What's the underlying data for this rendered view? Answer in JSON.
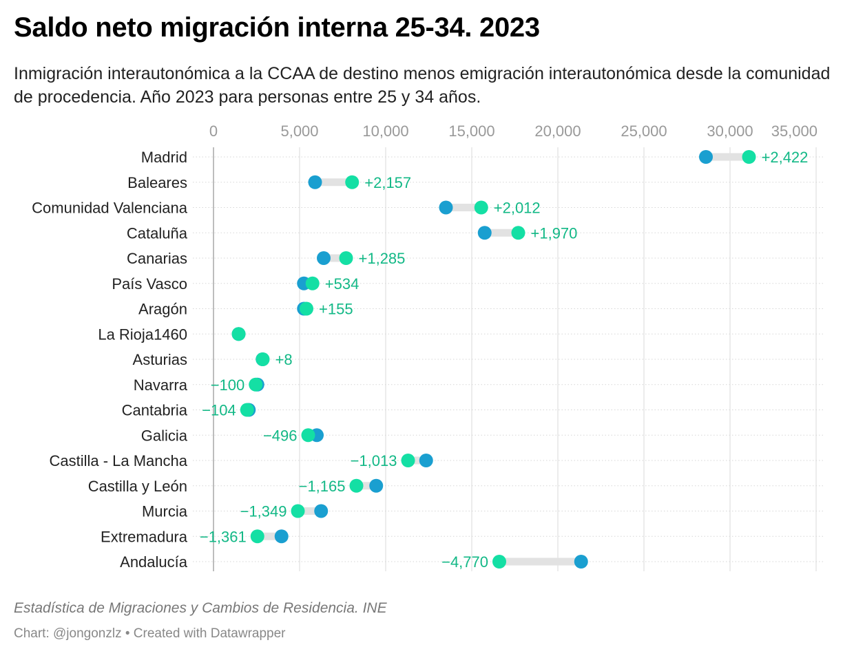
{
  "title": "Saldo neto migración interna 25-34. 2023",
  "subtitle": "Inmigración interautonómica a la CCAA de destino menos emigración interautonómica desde la comunidad de procedencia. Año 2023 para personas entre 25 y 34 años.",
  "source": "Estadística de Migraciones y Cambios de Residencia. INE",
  "credit": "Chart: @jongonzlz • Created with Datawrapper",
  "colors": {
    "emigracion": "#1a9fd0",
    "inmigracion": "#14dfa4",
    "positive_label": "#12b886",
    "negative_label": "#12b886",
    "connector": "#e2e2e2"
  },
  "chart_data": {
    "type": "dot-range",
    "xlim": [
      0,
      35000
    ],
    "xticks": [
      0,
      5000,
      10000,
      15000,
      20000,
      25000,
      30000,
      35000
    ],
    "xtick_labels": [
      "0",
      "5,000",
      "10,000",
      "15,000",
      "20,000",
      "25,000",
      "30,000",
      "35,000"
    ],
    "rows": [
      {
        "category": "Madrid",
        "emigracion": 28600,
        "inmigracion": 31100,
        "label": "+2,422"
      },
      {
        "category": "Baleares",
        "emigracion": 5900,
        "inmigracion": 8050,
        "label": "+2,157"
      },
      {
        "category": "Comunidad Valenciana",
        "emigracion": 13500,
        "inmigracion": 15550,
        "label": "+2,012"
      },
      {
        "category": "Cataluña",
        "emigracion": 15750,
        "inmigracion": 17700,
        "label": "+1,970"
      },
      {
        "category": "Canarias",
        "emigracion": 6400,
        "inmigracion": 7700,
        "label": "+1,285"
      },
      {
        "category": "País Vasco",
        "emigracion": 5250,
        "inmigracion": 5750,
        "label": "+534"
      },
      {
        "category": "Aragón",
        "emigracion": 5250,
        "inmigracion": 5400,
        "label": "+155"
      },
      {
        "category": "La Rioja1460",
        "emigracion": 1460,
        "inmigracion": 1460,
        "label": ""
      },
      {
        "category": "Asturias",
        "emigracion": 2850,
        "inmigracion": 2860,
        "label": "+8"
      },
      {
        "category": "Navarra",
        "emigracion": 2550,
        "inmigracion": 2450,
        "label": "−100"
      },
      {
        "category": "Cantabria",
        "emigracion": 2050,
        "inmigracion": 1950,
        "label": "−104"
      },
      {
        "category": "Galicia",
        "emigracion": 6000,
        "inmigracion": 5500,
        "label": "−496"
      },
      {
        "category": "Castilla - La Mancha",
        "emigracion": 12350,
        "inmigracion": 11300,
        "label": "−1,013"
      },
      {
        "category": "Castilla y León",
        "emigracion": 9450,
        "inmigracion": 8300,
        "label": "−1,165"
      },
      {
        "category": "Murcia",
        "emigracion": 6250,
        "inmigracion": 4900,
        "label": "−1,349"
      },
      {
        "category": "Extremadura",
        "emigracion": 3950,
        "inmigracion": 2550,
        "label": "−1,361"
      },
      {
        "category": "Andalucía",
        "emigracion": 21350,
        "inmigracion": 16600,
        "label": "−4,770"
      }
    ]
  }
}
